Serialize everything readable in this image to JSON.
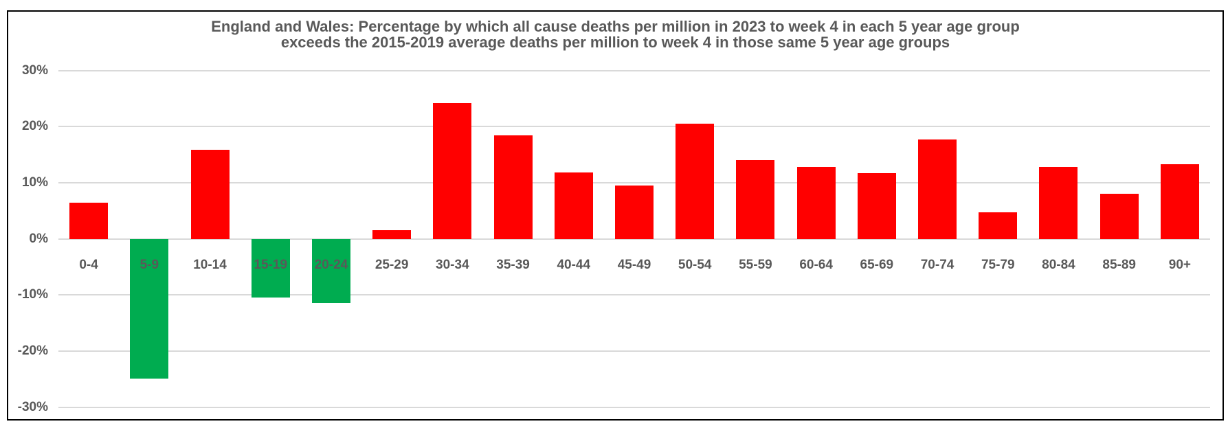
{
  "chart_data": {
    "type": "bar",
    "title_line1": "England and Wales: Percentage by which all cause deaths per million in 2023 to week 4 in each 5 year age group",
    "title_line2": "exceeds the 2015-2019 average deaths per million to week 4 in those same 5 year age groups",
    "categories": [
      "0-4",
      "5-9",
      "10-14",
      "15-19",
      "20-24",
      "25-29",
      "30-34",
      "35-39",
      "40-44",
      "45-49",
      "50-54",
      "55-59",
      "60-64",
      "65-69",
      "70-74",
      "75-79",
      "80-84",
      "85-89",
      "90+"
    ],
    "values": [
      6.4,
      -24.9,
      15.9,
      -10.5,
      -11.4,
      1.6,
      24.2,
      18.5,
      11.9,
      9.5,
      20.5,
      14.1,
      12.8,
      11.7,
      17.7,
      4.7,
      12.8,
      8.0,
      13.3
    ],
    "xlabel": "",
    "ylabel": "",
    "ylim": [
      -30,
      30
    ],
    "y_ticks": [
      {
        "label": "30%",
        "value": 30
      },
      {
        "label": "20%",
        "value": 20
      },
      {
        "label": "10%",
        "value": 10
      },
      {
        "label": "0%",
        "value": 0
      },
      {
        "label": "-10%",
        "value": -10
      },
      {
        "label": "-20%",
        "value": -20
      },
      {
        "label": "-30%",
        "value": -30
      }
    ],
    "grid": "horizontal",
    "legend": "none",
    "colors": {
      "positive_bar": "#FF0000",
      "negative_bar": "#00AC50",
      "gridline": "#D9D9D9",
      "text": "#595959",
      "border": "#000000",
      "background": "#FFFFFF"
    }
  }
}
